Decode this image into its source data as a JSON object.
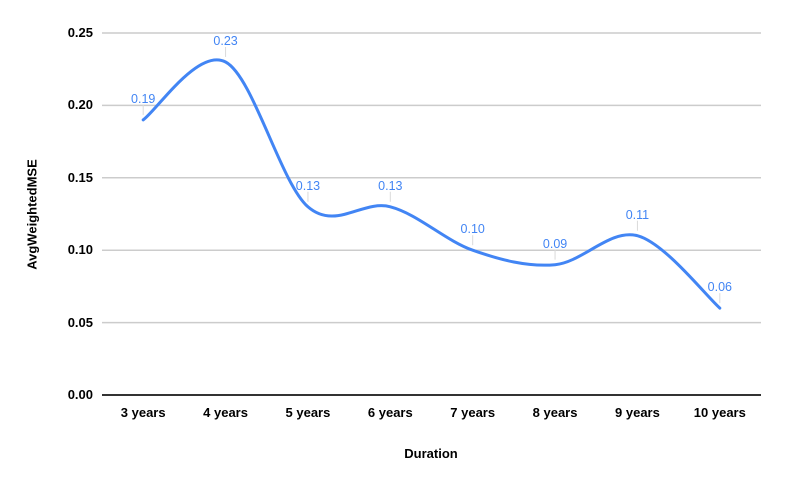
{
  "chart_data": {
    "type": "line",
    "smooth": true,
    "title": "",
    "xlabel": "Duration",
    "ylabel": "AvgWeightedMSE",
    "categories": [
      "3 years",
      "4 years",
      "5 years",
      "6 years",
      "7 years",
      "8 years",
      "9 years",
      "10 years"
    ],
    "series": [
      {
        "values": [
          0.19,
          0.23,
          0.13,
          0.13,
          0.1,
          0.09,
          0.11,
          0.06
        ],
        "color": "#4285f4"
      }
    ],
    "data_labels": [
      "0.19",
      "0.23",
      "0.13",
      "0.13",
      "0.10",
      "0.09",
      "0.11",
      "0.06"
    ],
    "y_ticks": [
      "0.25",
      "0.20",
      "0.15",
      "0.10",
      "0.05",
      "0.00"
    ],
    "ylim": [
      0,
      0.25
    ],
    "grid": true,
    "legend": "none",
    "accent_color": "#4285f4"
  }
}
